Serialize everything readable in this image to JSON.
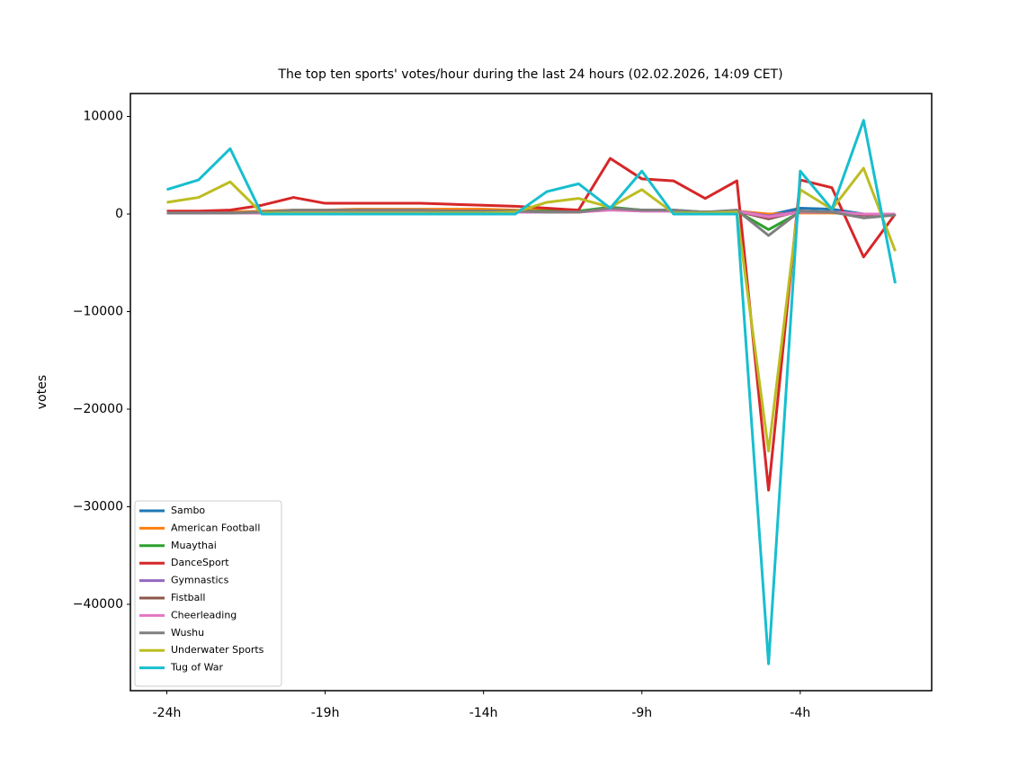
{
  "chart_data": {
    "type": "line",
    "title": "The top ten sports' votes/hour during the last 24 hours (02.02.2026, 14:09 CET)",
    "y_label": "votes",
    "x": [
      -24,
      -23,
      -22,
      -21,
      -20,
      -19,
      -18,
      -17,
      -16,
      -15,
      -14,
      -13,
      -12,
      -11,
      -10,
      -9,
      -8,
      -7,
      -6,
      -5,
      -4,
      -3,
      -2,
      -1
    ],
    "xlim": [
      -25.15,
      0.15
    ],
    "xticks": [
      {
        "value": -24,
        "label": "-24h"
      },
      {
        "value": -19,
        "label": "-19h"
      },
      {
        "value": -14,
        "label": "-14h"
      },
      {
        "value": -9,
        "label": "-9h"
      },
      {
        "value": -4,
        "label": "-4h"
      }
    ],
    "ylim": [
      -48850,
      12350
    ],
    "yticks": [
      {
        "value": -40000,
        "label": "−40000"
      },
      {
        "value": -30000,
        "label": "−30000"
      },
      {
        "value": -20000,
        "label": "−20000"
      },
      {
        "value": -10000,
        "label": "−10000"
      },
      0,
      10000
    ],
    "legend": "lower left",
    "series": [
      {
        "name": "Sambo",
        "color": "#1f77b4",
        "values": [
          100,
          100,
          100,
          200,
          300,
          300,
          300,
          300,
          300,
          300,
          300,
          300,
          300,
          300,
          600,
          400,
          400,
          200,
          300,
          -100,
          600,
          500,
          0,
          0
        ]
      },
      {
        "name": "American Football",
        "color": "#ff7f0e",
        "values": [
          200,
          200,
          200,
          300,
          400,
          400,
          500,
          500,
          500,
          500,
          500,
          400,
          400,
          300,
          500,
          400,
          300,
          200,
          300,
          0,
          100,
          100,
          0,
          0
        ]
      },
      {
        "name": "Muaythai",
        "color": "#2ca02c",
        "values": [
          100,
          100,
          100,
          200,
          300,
          300,
          300,
          300,
          300,
          300,
          300,
          300,
          300,
          300,
          700,
          400,
          300,
          200,
          300,
          -1600,
          200,
          200,
          0,
          0
        ]
      },
      {
        "name": "DanceSport",
        "color": "#d62728",
        "values": [
          300,
          300,
          400,
          900,
          1700,
          1100,
          1100,
          1100,
          1100,
          1000,
          900,
          800,
          600,
          400,
          5700,
          3600,
          3400,
          1600,
          3400,
          -28300,
          3500,
          2700,
          -4400,
          0
        ]
      },
      {
        "name": "Gymnastics",
        "color": "#9467bd",
        "values": [
          100,
          100,
          100,
          100,
          200,
          200,
          200,
          200,
          200,
          200,
          200,
          200,
          200,
          200,
          500,
          300,
          300,
          200,
          300,
          -200,
          300,
          200,
          0,
          0
        ]
      },
      {
        "name": "Fistball",
        "color": "#8c564b",
        "values": [
          100,
          100,
          100,
          200,
          300,
          300,
          300,
          300,
          300,
          300,
          300,
          300,
          200,
          200,
          500,
          400,
          300,
          200,
          300,
          -500,
          300,
          200,
          -100,
          0
        ]
      },
      {
        "name": "Cheerleading",
        "color": "#e377c2",
        "values": [
          100,
          100,
          100,
          100,
          200,
          200,
          200,
          200,
          200,
          200,
          200,
          200,
          200,
          200,
          400,
          300,
          300,
          200,
          300,
          -300,
          200,
          200,
          0,
          0
        ]
      },
      {
        "name": "Wushu",
        "color": "#7f7f7f",
        "values": [
          100,
          100,
          100,
          200,
          400,
          400,
          400,
          400,
          400,
          300,
          300,
          300,
          200,
          200,
          600,
          400,
          400,
          200,
          400,
          -2200,
          300,
          200,
          -400,
          -100
        ]
      },
      {
        "name": "Underwater Sports",
        "color": "#bcbd22",
        "values": [
          1200,
          1700,
          3300,
          100,
          100,
          100,
          100,
          100,
          100,
          100,
          100,
          200,
          1200,
          1600,
          700,
          2500,
          100,
          100,
          200,
          -24300,
          2500,
          500,
          4700,
          -3800
        ]
      },
      {
        "name": "Tug of War",
        "color": "#17becf",
        "values": [
          2500,
          3500,
          6700,
          0,
          0,
          0,
          0,
          0,
          0,
          0,
          0,
          0,
          2300,
          3100,
          600,
          4400,
          0,
          0,
          0,
          -46100,
          4400,
          500,
          9600,
          -7100
        ]
      }
    ]
  }
}
